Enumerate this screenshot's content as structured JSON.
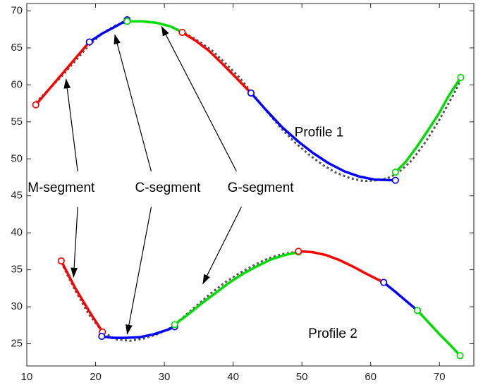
{
  "chart_data": {
    "type": "line",
    "title": "",
    "xlabel": "",
    "ylabel": "",
    "xlim": [
      10,
      75
    ],
    "ylim": [
      22,
      71
    ],
    "xticks": [
      10,
      20,
      30,
      40,
      50,
      60,
      70
    ],
    "yticks": [
      25,
      30,
      35,
      40,
      45,
      50,
      55,
      60,
      65,
      70
    ],
    "grid": false,
    "legend": "none",
    "colors": {
      "M-segment": "#ff0000",
      "C-segment": "#0000ff",
      "G-segment": "#00dd00",
      "reference": "#555555",
      "axes": "#262626"
    },
    "series": [
      {
        "profile": "Profile 1",
        "segments": [
          {
            "type": "M-segment",
            "x": [
              11.3,
              19.1
            ],
            "y": [
              57.3,
              65.8
            ]
          },
          {
            "type": "C-segment",
            "x": [
              19.1,
              20.9,
              22.7,
              24.6
            ],
            "y": [
              65.8,
              66.9,
              67.8,
              68.8
            ]
          },
          {
            "type": "G-segment",
            "x": [
              24.6,
              26.7,
              28.8,
              30.9,
              32.6
            ],
            "y": [
              68.6,
              68.6,
              68.4,
              67.9,
              67.1
            ]
          },
          {
            "type": "M-segment",
            "x": [
              32.6,
              34.5,
              36.5,
              38.5,
              40.5,
              42.6
            ],
            "y": [
              67.1,
              66.0,
              64.6,
              62.8,
              60.9,
              58.9
            ]
          },
          {
            "type": "C-segment",
            "x": [
              42.6,
              44.8,
              47.1,
              49.4,
              51.6,
              53.9,
              56.2,
              58.4,
              60.6,
              63.6
            ],
            "y": [
              58.9,
              56.6,
              54.3,
              52.4,
              50.8,
              49.4,
              48.3,
              47.6,
              47.2,
              47.1
            ]
          },
          {
            "type": "G-segment",
            "x": [
              63.6,
              65.1,
              66.7,
              68.3,
              69.9,
              71.4,
              73.1
            ],
            "y": [
              48.2,
              49.6,
              51.6,
              53.8,
              56.1,
              58.6,
              61.0
            ]
          }
        ],
        "reference_curve": {
          "x": [
            11.3,
            15.0,
            19.0,
            21.0,
            23.0,
            25.0,
            27.0,
            29.0,
            31.0,
            33.0,
            35.0,
            37.0,
            39.0,
            41.0,
            43.0,
            45.0,
            47.0,
            49.0,
            51.0,
            53.0,
            55.0,
            57.0,
            59.0,
            61.0,
            62.5,
            64.0,
            66.0,
            68.0,
            70.0,
            72.0,
            73.1
          ],
          "y": [
            57.6,
            61.1,
            65.3,
            67.0,
            68.1,
            68.6,
            68.6,
            68.4,
            67.9,
            67.0,
            65.9,
            64.6,
            62.8,
            60.9,
            58.6,
            56.3,
            54.1,
            52.2,
            50.6,
            49.2,
            48.1,
            47.4,
            47.0,
            47.1,
            47.4,
            48.1,
            49.8,
            52.3,
            55.3,
            58.6,
            60.7
          ]
        }
      },
      {
        "profile": "Profile 2",
        "segments": [
          {
            "type": "M-segment",
            "x": [
              15.0,
              17.0,
              19.0,
              21.0
            ],
            "y": [
              36.2,
              32.6,
              29.5,
              26.6
            ]
          },
          {
            "type": "C-segment",
            "x": [
              20.9,
              22.5,
              24.5,
              26.5,
              28.5,
              30.5,
              31.5
            ],
            "y": [
              26.0,
              25.8,
              25.8,
              25.9,
              26.3,
              26.9,
              27.3
            ]
          },
          {
            "type": "G-segment",
            "x": [
              31.5,
              33.5,
              35.5,
              37.5,
              39.5,
              41.5,
              43.5,
              45.5,
              47.5,
              49.5
            ],
            "y": [
              27.6,
              29.0,
              30.5,
              31.9,
              33.3,
              34.5,
              35.5,
              36.4,
              37.0,
              37.4
            ]
          },
          {
            "type": "M-segment",
            "x": [
              49.5,
              51.5,
              53.5,
              55.5,
              57.5,
              59.5,
              61.9
            ],
            "y": [
              37.5,
              37.4,
              37.0,
              36.3,
              35.4,
              34.4,
              33.3
            ]
          },
          {
            "type": "C-segment",
            "x": [
              61.9,
              63.5,
              65.0,
              66.8
            ],
            "y": [
              33.3,
              32.1,
              30.9,
              29.5
            ]
          },
          {
            "type": "G-segment",
            "x": [
              66.8,
              68.4,
              70.0,
              71.6,
              73.0
            ],
            "y": [
              29.5,
              27.9,
              26.3,
              24.8,
              23.4
            ]
          }
        ],
        "reference_curve": {
          "x": [
            15.0,
            17.0,
            19.0,
            21.0,
            23.0,
            25.0,
            27.0,
            29.0,
            31.0,
            33.0,
            35.0,
            37.0,
            39.0,
            41.0,
            43.0,
            45.0,
            47.0,
            49.0
          ],
          "y": [
            36.0,
            32.3,
            29.0,
            26.6,
            25.6,
            25.4,
            25.7,
            26.3,
            27.2,
            28.8,
            30.4,
            32.0,
            33.4,
            34.6,
            35.6,
            36.5,
            37.1,
            37.4
          ]
        }
      }
    ],
    "text_labels": [
      {
        "text": "Profile 1",
        "x": 52.5,
        "y": 53.5
      },
      {
        "text": "Profile 2",
        "x": 54.5,
        "y": 26.3
      }
    ],
    "annotations": [
      {
        "text": "M-segment",
        "label_x": 15.0,
        "label_y": 46.0,
        "arrows": [
          {
            "from": [
              17.4,
              48.3
            ],
            "to": [
              15.7,
              60.8
            ]
          },
          {
            "from": [
              17.4,
              43.5
            ],
            "to": [
              16.8,
              34.0
            ]
          }
        ]
      },
      {
        "text": "C-segment",
        "label_x": 30.5,
        "label_y": 46.0,
        "arrows": [
          {
            "from": [
              28.1,
              48.3
            ],
            "to": [
              22.8,
              66.8
            ]
          },
          {
            "from": [
              28.1,
              43.5
            ],
            "to": [
              24.6,
              26.3
            ]
          }
        ]
      },
      {
        "text": "G-segment",
        "label_x": 44.0,
        "label_y": 46.0,
        "arrows": [
          {
            "from": [
              40.5,
              48.3
            ],
            "to": [
              29.6,
              67.9
            ]
          },
          {
            "from": [
              41.2,
              43.5
            ],
            "to": [
              35.6,
              33.1
            ]
          }
        ]
      }
    ]
  }
}
